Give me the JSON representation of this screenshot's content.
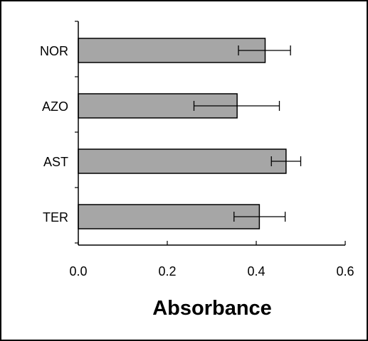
{
  "chart_data": {
    "type": "bar",
    "orientation": "horizontal",
    "title": "",
    "xlabel": "Absorbance",
    "ylabel": "",
    "categories": [
      "NOR",
      "AZO",
      "AST",
      "TER"
    ],
    "values": [
      0.42,
      0.357,
      0.467,
      0.407
    ],
    "error_low": [
      0.36,
      0.26,
      0.434,
      0.35
    ],
    "error_high": [
      0.477,
      0.452,
      0.5,
      0.465
    ],
    "xlim": [
      0.0,
      0.6
    ],
    "xticks": [
      "0.0",
      "0.2",
      "0.4",
      "0.6"
    ],
    "grid": false,
    "legend": "none",
    "bar_color": "#a6a6a6",
    "bar_edge_color": "#000000",
    "background": "#ffffff"
  }
}
